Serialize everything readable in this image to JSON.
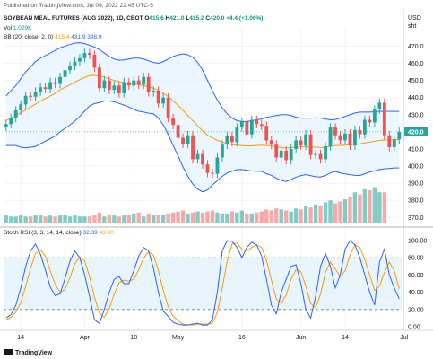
{
  "header": {
    "published": "Published on TradingView.com, Jul 06, 2022 22:45 UTC-5",
    "symbol": "SOYBEAN MEAL FUTURES (AUG 2022), 1D, CBOT",
    "o_label": "O",
    "o": "415.6",
    "h_label": "H",
    "h": "421.0",
    "l_label": "L",
    "l": "415.2",
    "c_label": "C",
    "c": "420.0",
    "change": "+4.4 (+1.06%)",
    "vol_label": "Vol",
    "vol": "1.029K",
    "bb_label": "BB (20, close, 2, 0)",
    "bb_basis": "415.4",
    "bb_upper": "431.9",
    "bb_lower": "398.9",
    "rsi_label": "Stoch RSI (3, 3, 14, 14, close)",
    "rsi_k": "32.39",
    "rsi_d": "43.90"
  },
  "colors": {
    "up": "#26a69a",
    "down": "#ef5350",
    "basis": "#ff9800",
    "band": "#2962ff",
    "band_fill": "#e3f2fd",
    "k": "#2962ff",
    "d": "#ff9800",
    "rsi_fill": "#e3f2fd"
  },
  "footer": {
    "brand": "TradingView",
    "logo_icon": "tradingview-logo-icon"
  },
  "chart_data": {
    "type": "candlestick",
    "price_axis": {
      "currency": "USD",
      "unit": "sht",
      "ticks": [
        370.0,
        380.0,
        390.0,
        400.0,
        410.0,
        420.0,
        430.0,
        440.0,
        450.0,
        460.0,
        470.0
      ],
      "range": [
        367,
        476
      ],
      "last_price": "420.0"
    },
    "x_ticks": [
      {
        "label": "14",
        "index": 3
      },
      {
        "label": "Apr",
        "index": 16
      },
      {
        "label": "18",
        "index": 26
      },
      {
        "label": "May",
        "index": 35
      },
      {
        "label": "16",
        "index": 48
      },
      {
        "label": "Jun",
        "index": 60
      },
      {
        "label": "14",
        "index": 69
      },
      {
        "label": "Jul",
        "index": 81
      }
    ],
    "closes": [
      424.5,
      428.0,
      432.5,
      436.0,
      441.0,
      440.5,
      443.5,
      446.0,
      445.0,
      449.0,
      448.0,
      452.0,
      456.0,
      458.5,
      461.0,
      463.0,
      466.0,
      465.0,
      457.5,
      445.5,
      450.0,
      444.5,
      447.0,
      442.5,
      449.0,
      447.0,
      450.0,
      447.5,
      452.0,
      443.0,
      444.0,
      436.5,
      440.0,
      428.0,
      424.0,
      416.5,
      413.0,
      418.0,
      404.0,
      407.0,
      401.0,
      396.0,
      395.5,
      405.0,
      412.5,
      417.5,
      414.0,
      422.5,
      426.0,
      418.5,
      427.0,
      424.5,
      423.5,
      415.0,
      412.5,
      405.0,
      409.0,
      403.5,
      410.0,
      415.0,
      412.0,
      418.5,
      406.5,
      407.0,
      404.0,
      411.5,
      422.5,
      418.0,
      415.0,
      419.0,
      412.0,
      421.0,
      418.5,
      427.0,
      425.5,
      433.0,
      437.0,
      418.0,
      411.0,
      415.6,
      420.0
    ],
    "volumes": [
      7,
      6,
      6,
      7,
      6,
      6,
      7,
      7,
      6,
      7,
      6,
      7,
      8,
      6,
      7,
      6,
      6,
      6,
      7,
      10,
      6,
      8,
      7,
      6,
      7,
      8,
      9,
      10,
      6,
      9,
      8,
      8,
      8,
      9,
      10,
      11,
      12,
      9,
      10,
      11,
      10,
      11,
      12,
      10,
      9,
      9,
      11,
      10,
      12,
      9,
      9,
      10,
      11,
      13,
      12,
      14,
      13,
      12,
      11,
      14,
      13,
      16,
      15,
      18,
      17,
      20,
      22,
      19,
      21,
      23,
      25,
      30,
      28,
      33,
      32,
      35,
      30,
      30,
      0,
      0,
      0
    ],
    "bb_basis": [
      426.5,
      428.0,
      429.5,
      431.0,
      432.8,
      434.5,
      436.2,
      438.0,
      439.5,
      441.0,
      442.5,
      444.5,
      446.0,
      447.5,
      449.0,
      450.5,
      451.8,
      452.8,
      453.0,
      452.5,
      452.0,
      451.0,
      450.0,
      449.2,
      448.8,
      448.5,
      448.0,
      447.5,
      447.0,
      446.2,
      445.5,
      444.0,
      442.5,
      440.5,
      438.0,
      435.5,
      432.5,
      429.5,
      426.5,
      423.5,
      420.5,
      418.0,
      416.5,
      415.0,
      414.0,
      413.2,
      412.5,
      412.2,
      412.0,
      411.8,
      411.8,
      412.0,
      412.2,
      412.0,
      411.8,
      411.2,
      410.8,
      410.5,
      410.8,
      411.0,
      411.2,
      411.5,
      411.2,
      411.0,
      410.8,
      411.0,
      411.5,
      412.0,
      412.0,
      412.2,
      412.5,
      412.8,
      413.0,
      413.5,
      414.0,
      414.5,
      415.0,
      415.2,
      415.3,
      415.4,
      415.4
    ],
    "bb_upper": [
      441.0,
      444.0,
      447.0,
      451.0,
      455.0,
      458.0,
      461.0,
      463.0,
      464.5,
      466.0,
      467.5,
      469.0,
      470.0,
      471.0,
      471.8,
      472.0,
      471.5,
      470.5,
      469.5,
      468.0,
      466.0,
      464.0,
      462.5,
      461.8,
      462.0,
      462.5,
      463.0,
      463.0,
      462.5,
      461.5,
      460.5,
      460.0,
      461.0,
      462.5,
      464.0,
      465.0,
      465.5,
      465.0,
      463.5,
      460.5,
      456.0,
      450.0,
      444.0,
      438.5,
      434.0,
      430.5,
      428.0,
      426.5,
      426.0,
      426.0,
      426.5,
      427.0,
      427.5,
      428.5,
      429.0,
      429.5,
      430.0,
      430.0,
      429.5,
      428.5,
      428.0,
      428.0,
      428.0,
      428.2,
      428.0,
      427.5,
      427.0,
      427.2,
      428.0,
      429.0,
      430.0,
      431.0,
      431.5,
      431.5,
      431.5,
      431.8,
      432.0,
      432.0,
      432.0,
      431.9,
      431.9
    ],
    "bb_lower": [
      412.0,
      412.0,
      412.0,
      411.0,
      410.6,
      411.0,
      411.4,
      413.0,
      414.5,
      416.0,
      417.5,
      420.0,
      422.0,
      424.0,
      426.2,
      429.0,
      432.1,
      435.1,
      436.5,
      437.0,
      438.0,
      438.0,
      437.5,
      436.6,
      435.6,
      434.5,
      433.0,
      432.0,
      431.5,
      430.9,
      430.5,
      428.0,
      424.0,
      418.5,
      412.0,
      406.0,
      399.5,
      394.0,
      389.5,
      386.5,
      385.0,
      386.0,
      389.0,
      391.5,
      394.0,
      396.0,
      397.0,
      397.9,
      398.0,
      397.6,
      397.1,
      397.0,
      396.9,
      395.5,
      394.6,
      392.9,
      391.6,
      391.0,
      392.1,
      393.5,
      394.4,
      395.0,
      394.4,
      393.8,
      393.6,
      394.5,
      396.0,
      396.8,
      396.0,
      395.4,
      395.0,
      394.6,
      394.5,
      395.5,
      396.5,
      397.2,
      398.0,
      398.4,
      398.6,
      398.9,
      398.9
    ],
    "stoch_rsi": {
      "levels": [
        0.0,
        20.0,
        40.0,
        60.0,
        80.0,
        100.0
      ],
      "bands": [
        20,
        80
      ],
      "k": [
        10,
        14,
        25,
        45,
        70,
        88,
        96,
        84,
        66,
        46,
        36,
        38,
        56,
        76,
        88,
        80,
        60,
        35,
        8,
        4,
        20,
        40,
        55,
        58,
        50,
        50,
        65,
        82,
        92,
        88,
        68,
        40,
        18,
        12,
        5,
        3,
        2,
        2,
        3,
        4,
        2,
        2,
        8,
        40,
        88,
        100,
        99,
        92,
        80,
        92,
        98,
        95,
        82,
        55,
        25,
        15,
        40,
        55,
        70,
        72,
        50,
        20,
        10,
        35,
        70,
        85,
        70,
        45,
        60,
        90,
        100,
        95,
        80,
        60,
        40,
        25,
        75,
        90,
        60,
        45,
        32.39
      ],
      "d": [
        8,
        11,
        17,
        28,
        47,
        68,
        85,
        89,
        82,
        65,
        49,
        40,
        43,
        57,
        73,
        81,
        76,
        58,
        34,
        16,
        11,
        21,
        38,
        51,
        54,
        53,
        55,
        66,
        80,
        87,
        83,
        65,
        42,
        23,
        12,
        7,
        3,
        2,
        2,
        3,
        3,
        3,
        4,
        17,
        45,
        76,
        96,
        97,
        90,
        88,
        92,
        95,
        92,
        77,
        54,
        32,
        27,
        37,
        55,
        66,
        64,
        47,
        27,
        22,
        38,
        63,
        75,
        67,
        58,
        65,
        83,
        95,
        92,
        78,
        60,
        42,
        47,
        63,
        75,
        65,
        43.9
      ]
    }
  }
}
